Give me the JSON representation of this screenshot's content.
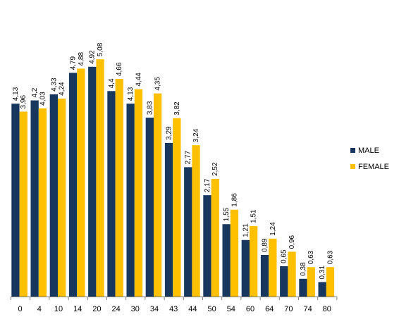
{
  "chart_data": {
    "type": "bar",
    "categories": [
      "0",
      "4",
      "10",
      "14",
      "20",
      "24",
      "30",
      "34",
      "43",
      "44",
      "50",
      "54",
      "60",
      "64",
      "70",
      "74",
      "80"
    ],
    "series": [
      {
        "name": "MALE",
        "color": "#17375e",
        "values": [
          4.13,
          4.2,
          4.33,
          4.79,
          4.92,
          4.4,
          4.13,
          3.83,
          3.29,
          2.77,
          2.17,
          1.55,
          1.21,
          0.89,
          0.65,
          0.38,
          0.31
        ],
        "labels": [
          "4,13",
          "4,2",
          "4,33",
          "4,79",
          "4,92",
          "4,4",
          "4,13",
          "3,83",
          "3,29",
          "2,77",
          "2,17",
          "1,55",
          "1,21",
          "0,89",
          "0,65",
          "0,38",
          "0,31"
        ]
      },
      {
        "name": "FEMALE",
        "color": "#ffc000",
        "values": [
          3.96,
          4.03,
          4.24,
          4.88,
          5.08,
          4.66,
          4.44,
          4.35,
          3.82,
          3.24,
          2.52,
          1.86,
          1.51,
          1.24,
          0.96,
          0.63,
          0.63
        ],
        "labels": [
          "3,96",
          "4,03",
          "4,24",
          "4,88",
          "5,08",
          "4,66",
          "4,44",
          "4,35",
          "3,82",
          "3,24",
          "2,52",
          "1,86",
          "1,51",
          "1,24",
          "0,96",
          "0,63",
          "0,63"
        ]
      }
    ],
    "title": "",
    "xlabel": "",
    "ylabel": "",
    "ylim": [
      0,
      5.08
    ],
    "grid": false,
    "legend_position": "right"
  }
}
